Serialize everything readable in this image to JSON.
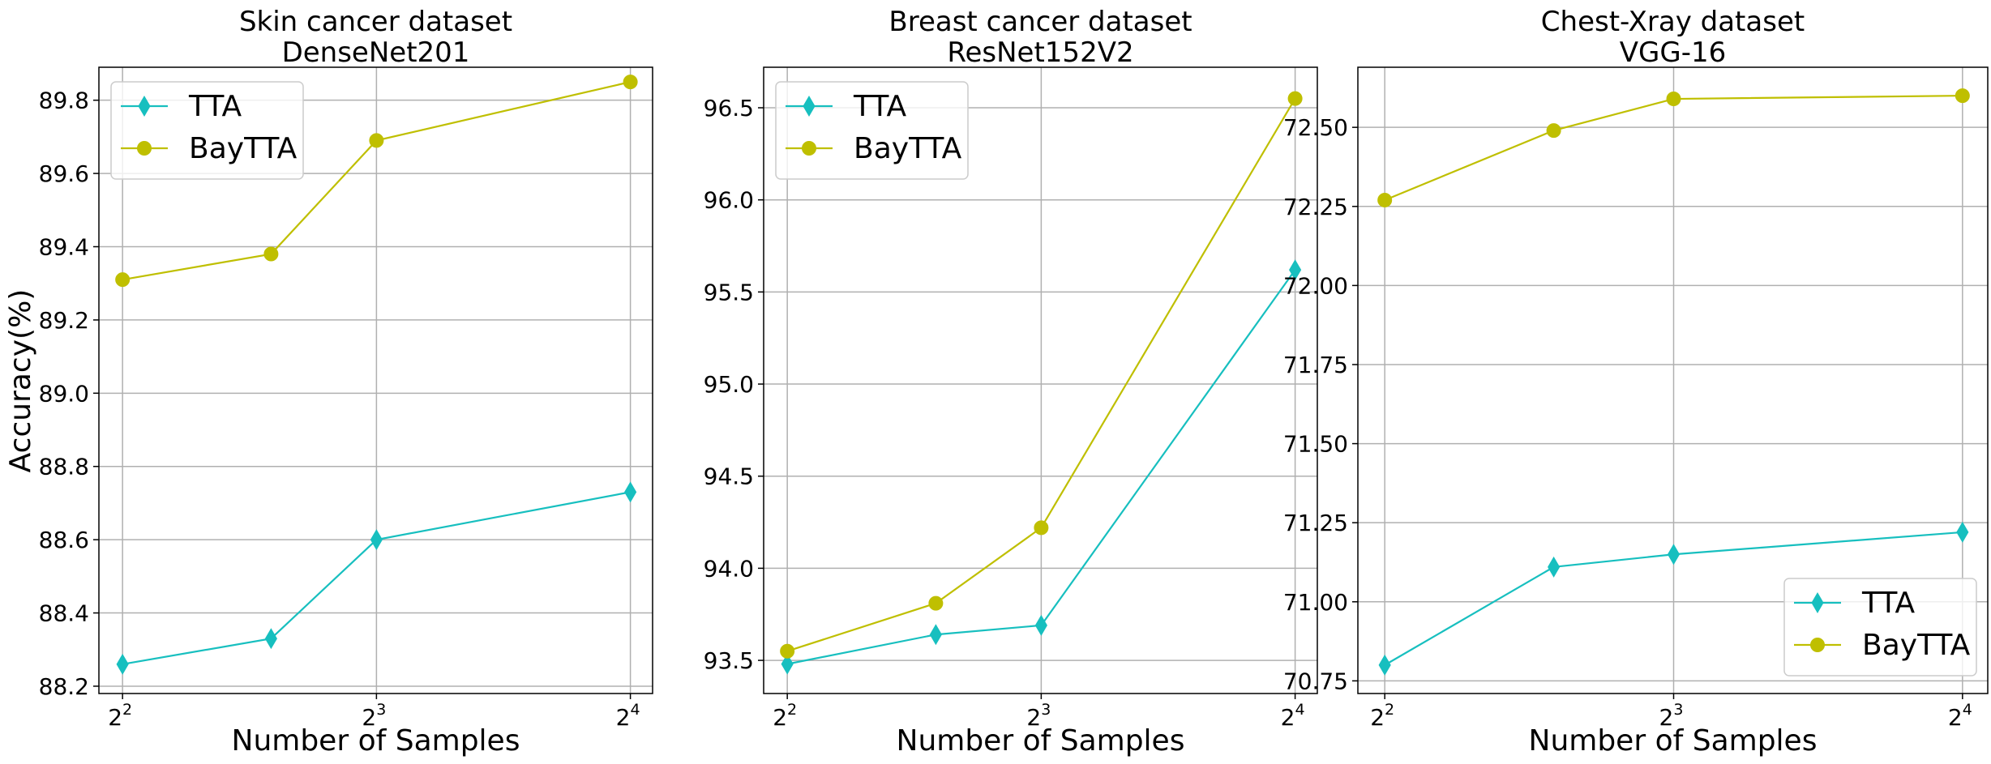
{
  "figure": {
    "ylabel": "Accuracy(%)",
    "series_colors": {
      "TTA": "#17bfbf",
      "BayTTA": "#bfbf00"
    },
    "markers": {
      "TTA": "thin-diamond",
      "BayTTA": "circle"
    }
  },
  "chart_data": [
    {
      "type": "line",
      "title": "Skin cancer dataset",
      "subtitle": "DenseNet201",
      "xlabel": "Number of Samples",
      "ylabel": "Accuracy(%)",
      "x": [
        4,
        6,
        8,
        16
      ],
      "x_scale": "log2",
      "xlim": [
        3.75,
        17
      ],
      "xticks": [
        {
          "value": 4,
          "base": "2",
          "exp": "2"
        },
        {
          "value": 8,
          "base": "2",
          "exp": "3"
        },
        {
          "value": 16,
          "base": "2",
          "exp": "4"
        }
      ],
      "ylim": [
        88.18,
        89.89
      ],
      "yticks": [
        88.2,
        88.4,
        88.6,
        88.8,
        89.0,
        89.2,
        89.4,
        89.6,
        89.8
      ],
      "ytick_decimals": 1,
      "series": [
        {
          "name": "TTA",
          "values": [
            88.26,
            88.33,
            88.6,
            88.73
          ]
        },
        {
          "name": "BayTTA",
          "values": [
            89.31,
            89.38,
            89.69,
            89.85
          ]
        }
      ],
      "grid": true,
      "legend": {
        "position": "top-left",
        "entries": [
          "TTA",
          "BayTTA"
        ]
      }
    },
    {
      "type": "line",
      "title": "Breast cancer dataset",
      "subtitle": "ResNet152V2",
      "xlabel": "Number of Samples",
      "ylabel": "",
      "x": [
        4,
        6,
        8,
        16
      ],
      "x_scale": "log2",
      "xlim": [
        3.75,
        17
      ],
      "xticks": [
        {
          "value": 4,
          "base": "2",
          "exp": "2"
        },
        {
          "value": 8,
          "base": "2",
          "exp": "3"
        },
        {
          "value": 16,
          "base": "2",
          "exp": "4"
        }
      ],
      "ylim": [
        93.32,
        96.72
      ],
      "yticks": [
        93.5,
        94.0,
        94.5,
        95.0,
        95.5,
        96.0,
        96.5
      ],
      "ytick_decimals": 1,
      "series": [
        {
          "name": "TTA",
          "values": [
            93.48,
            93.64,
            93.69,
            95.62
          ]
        },
        {
          "name": "BayTTA",
          "values": [
            93.55,
            93.81,
            94.22,
            96.55
          ]
        }
      ],
      "grid": true,
      "legend": {
        "position": "top-left",
        "entries": [
          "TTA",
          "BayTTA"
        ]
      }
    },
    {
      "type": "line",
      "title": "Chest-Xray dataset",
      "subtitle": "VGG-16",
      "xlabel": "Number of Samples",
      "ylabel": "",
      "x": [
        4,
        6,
        8,
        16
      ],
      "x_scale": "log2",
      "xlim": [
        3.75,
        17
      ],
      "xticks": [
        {
          "value": 4,
          "base": "2",
          "exp": "2"
        },
        {
          "value": 8,
          "base": "2",
          "exp": "3"
        },
        {
          "value": 16,
          "base": "2",
          "exp": "4"
        }
      ],
      "ylim": [
        70.71,
        72.69
      ],
      "yticks": [
        70.75,
        71.0,
        71.25,
        71.5,
        71.75,
        72.0,
        72.25,
        72.5
      ],
      "ytick_decimals": 2,
      "series": [
        {
          "name": "TTA",
          "values": [
            70.8,
            71.11,
            71.15,
            71.22
          ]
        },
        {
          "name": "BayTTA",
          "values": [
            72.27,
            72.49,
            72.59,
            72.6
          ]
        }
      ],
      "grid": true,
      "legend": {
        "position": "bottom-right",
        "entries": [
          "TTA",
          "BayTTA"
        ]
      }
    }
  ]
}
